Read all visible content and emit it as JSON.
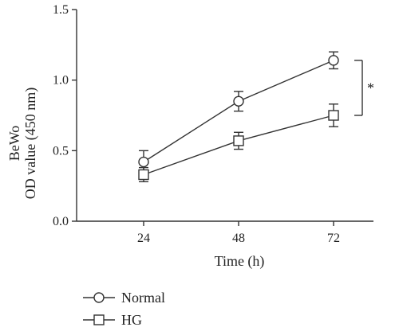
{
  "chart_data": {
    "type": "line",
    "ylabel_line1": "BeWo",
    "ylabel_line2": "OD value (450 nm)",
    "xlabel": "Time (h)",
    "x": [
      24,
      48,
      72
    ],
    "x_tick_labels": [
      "24",
      "48",
      "72"
    ],
    "ylim": [
      0,
      1.5
    ],
    "y_ticks": [
      0,
      0.5,
      1.0,
      1.5
    ],
    "y_tick_labels": [
      "0.0",
      "0.5",
      "1.0",
      "1.5"
    ],
    "grid": false,
    "legend_position": "bottom-left",
    "series": [
      {
        "name": "Normal",
        "marker": "circle",
        "values": [
          0.42,
          0.85,
          1.14
        ],
        "errors": [
          0.08,
          0.07,
          0.06
        ]
      },
      {
        "name": "HG",
        "marker": "square",
        "values": [
          0.33,
          0.57,
          0.75
        ],
        "errors": [
          0.05,
          0.06,
          0.08
        ]
      }
    ],
    "significance": {
      "label": "*",
      "from_series": "HG",
      "to_series": "Normal",
      "at_x": 72
    },
    "colors": {
      "line": "#333333",
      "marker_fill": "#ffffff"
    }
  }
}
